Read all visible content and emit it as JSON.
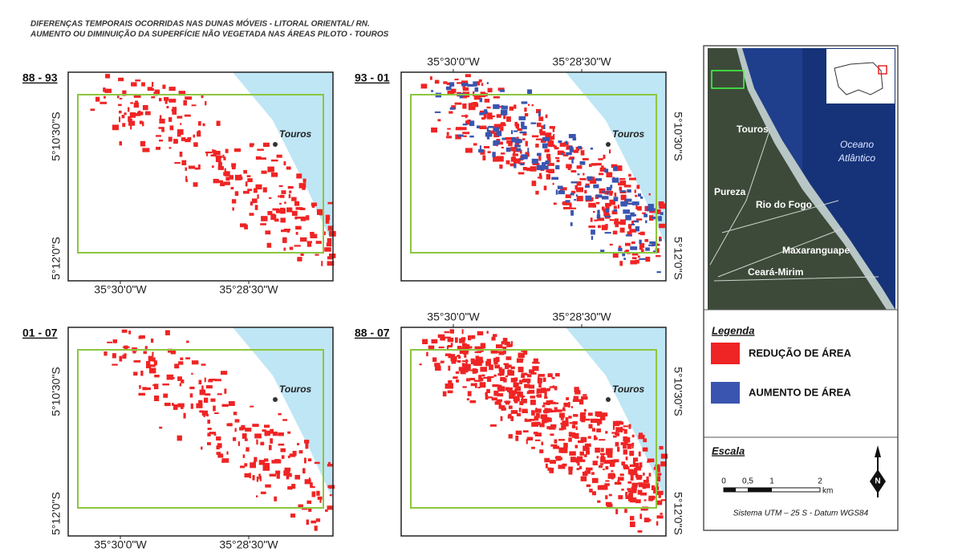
{
  "header": {
    "title_lines": [
      "DIFERENÇAS TEMPORAIS OCORRIDAS NAS DUNAS MÓVEIS - LITORAL ORIENTAL/ RN.",
      "AUMENTO OU DIMINUIÇÃO DA SUPERFÍCIE NÃO VEGETADA NAS ÁREAS PILOTO - TOUROS"
    ]
  },
  "panels": [
    {
      "label": "88 - 93",
      "place": "Touros",
      "lon_ticks": [
        "35°30'0\"W",
        "35°28'30\"W"
      ],
      "lat_ticks": [
        "5°10'30\"S",
        "5°12'0\"S"
      ]
    },
    {
      "label": "93 - 01",
      "place": "Touros",
      "lon_ticks": [
        "35°30'0\"W",
        "35°28'30\"W"
      ],
      "lat_ticks": [
        "5°10'30\"S",
        "5°12'0\"S"
      ]
    },
    {
      "label": "01 - 07",
      "place": "Touros",
      "lon_ticks": [
        "35°30'0\"W",
        "35°28'30\"W"
      ],
      "lat_ticks": [
        "5°10'30\"S",
        "5°12'0\"S"
      ]
    },
    {
      "label": "88 - 07",
      "place": "Touros",
      "lon_ticks": [
        "35°30'0\"W",
        "35°28'30\"W"
      ],
      "lat_ticks": [
        "5°10'30\"S",
        "5°12'0\"S"
      ]
    }
  ],
  "location_map": {
    "places": [
      "Touros",
      "Pureza",
      "Rio do Fogo",
      "Maxaranguape",
      "Ceará-Mirim"
    ],
    "ocean": [
      "Oceano",
      "Atlântico"
    ]
  },
  "legend": {
    "title": "Legenda",
    "items": [
      "REDUÇÃO DE ÁREA",
      "AUMENTO DE ÁREA"
    ]
  },
  "scale": {
    "title": "Escala",
    "labels": [
      "0",
      "0,5",
      "1",
      "2"
    ],
    "unit": "km",
    "north": "N",
    "datum": "Sistema UTM – 25 S - Datum WGS84"
  }
}
